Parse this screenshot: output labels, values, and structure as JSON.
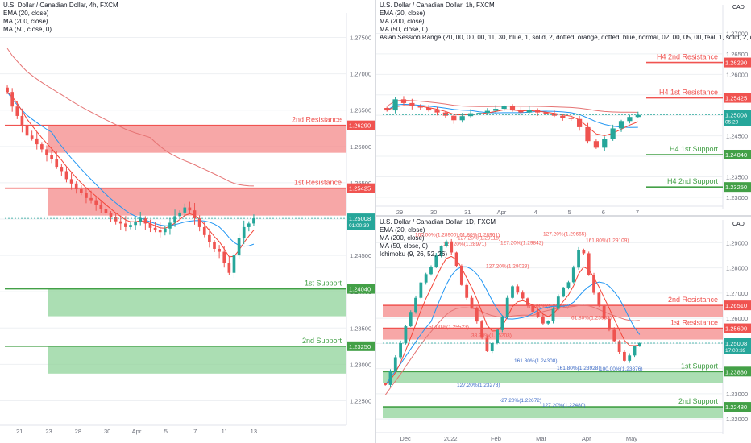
{
  "colors": {
    "up": "#26a69a",
    "down": "#ef5350",
    "resistance": "#f05350",
    "resistance_fill": "#f48a8a",
    "support": "#43a047",
    "support_fill": "#8fd39a",
    "ema": "#f44336",
    "ma200": "#e57373",
    "ma50": "#2196f3",
    "grid": "#eef0f3"
  },
  "chart_data": [
    {
      "type": "candlestick",
      "title": "U.S. Dollar / Canadian Dollar, 4h, FXCM",
      "indicators": [
        "EMA (20, close)",
        "MA (200, close)",
        "MA (50, close, 0)"
      ],
      "x_ticks": [
        "21",
        "23",
        "28",
        "30",
        "Apr",
        "5",
        "7",
        "11",
        "13"
      ],
      "y_ticks": [
        "1.27500",
        "1.27000",
        "1.26500",
        "1.26000",
        "1.25500",
        "1.25000",
        "1.24500",
        "1.24000",
        "1.23500",
        "1.23000",
        "1.22500"
      ],
      "ylim": [
        1.2225,
        1.2775
      ],
      "last_price": "1.25008",
      "countdown": "01:00:39",
      "levels": [
        {
          "name": "2nd Resistance",
          "value": 1.2629,
          "label": "1.26290",
          "type": "resistance"
        },
        {
          "name": "1st Resistance",
          "value": 1.25425,
          "label": "1.25425",
          "type": "resistance"
        },
        {
          "name": "1st Support",
          "value": 1.2404,
          "label": "1.24040",
          "type": "support"
        },
        {
          "name": "2nd Support",
          "value": 1.2325,
          "label": "1.23250",
          "type": "support"
        }
      ],
      "series_close": [
        1.2675,
        1.2655,
        1.2642,
        1.2628,
        1.2615,
        1.2611,
        1.2603,
        1.2596,
        1.2588,
        1.2583,
        1.2572,
        1.2566,
        1.2555,
        1.2549,
        1.2541,
        1.2536,
        1.2529,
        1.2526,
        1.252,
        1.2514,
        1.2508,
        1.2503,
        1.2497,
        1.2494,
        1.2489,
        1.2492,
        1.2496,
        1.2501,
        1.2494,
        1.2488,
        1.2485,
        1.2482,
        1.2487,
        1.2495,
        1.2504,
        1.2509,
        1.2516,
        1.2512,
        1.2501,
        1.2489,
        1.2478,
        1.2468,
        1.2459,
        1.2455,
        1.2439,
        1.2426,
        1.245,
        1.2474,
        1.2489,
        1.2494,
        1.2501
      ]
    },
    {
      "type": "candlestick",
      "title": "U.S. Dollar / Canadian Dollar, 1h, FXCM",
      "indicators": [
        "EMA (20, close)",
        "MA (200, close)",
        "MA (50, close, 0)",
        "Asian Session Range (20, 00, 00, 00, 11, 30, blue, 1, solid, 2, dotted, orange, dotted, blue, normal, 02, 00, 05, 00, teal, 1, solid, 2, dotted, teal, dotted,"
      ],
      "x_ticks": [
        "29",
        "30",
        "31",
        "Apr",
        "4",
        "5",
        "6",
        "7"
      ],
      "y_ticks": [
        "1.27000",
        "1.26500",
        "1.26000",
        "1.25500",
        "1.25000",
        "1.24500",
        "1.24000",
        "1.23500",
        "1.23000"
      ],
      "ylim": [
        1.2286,
        1.2754
      ],
      "price_scale_label": "CAD",
      "last_price": "1.25008",
      "countdown": "05:29",
      "levels": [
        {
          "name": "H4 2nd Resistance",
          "value": 1.2629,
          "label": "1.26290",
          "type": "resistance"
        },
        {
          "name": "H4 1st Resistance",
          "value": 1.25425,
          "label": "1.25425",
          "type": "resistance"
        },
        {
          "name": "H4 1st Support",
          "value": 1.2404,
          "label": "1.24040",
          "type": "support"
        },
        {
          "name": "H4 2nd Support",
          "value": 1.2325,
          "label": "1.23250",
          "type": "support"
        }
      ],
      "series_close": [
        1.2512,
        1.2539,
        1.253,
        1.2523,
        1.2519,
        1.2512,
        1.2507,
        1.2499,
        1.2488,
        1.2498,
        1.2505,
        1.2506,
        1.2511,
        1.2516,
        1.2522,
        1.2512,
        1.2507,
        1.2513,
        1.2507,
        1.2503,
        1.2499,
        1.2494,
        1.2491,
        1.2471,
        1.2437,
        1.2421,
        1.2442,
        1.2468,
        1.2486,
        1.2496,
        1.2501
      ]
    },
    {
      "type": "candlestick",
      "title": "U.S. Dollar / Canadian Dollar, 1D, FXCM",
      "indicators": [
        "EMA (20, close)",
        "MA (200, close)",
        "MA (50, close, 0)",
        "Ichimoku (9, 26, 52, 26)"
      ],
      "x_ticks": [
        "Dec",
        "2022",
        "Feb",
        "Mar",
        "Apr",
        "May"
      ],
      "y_ticks": [
        "1.29000",
        "1.28000",
        "1.27000",
        "1.26000",
        "1.25000",
        "1.24000",
        "1.23000",
        "1.22000"
      ],
      "ylim": [
        1.2165,
        1.2965
      ],
      "price_scale_label": "CAD",
      "last_price": "1.25008",
      "countdown": "17:00:39",
      "levels": [
        {
          "name": "2nd Resistance",
          "value": 1.2651,
          "label": "1.26510",
          "type": "resistance"
        },
        {
          "name": "1st Resistance",
          "value": 1.256,
          "label": "1.25600",
          "type": "resistance"
        },
        {
          "name": "1st Support",
          "value": 1.2388,
          "label": "1.23880",
          "type": "support"
        },
        {
          "name": "2nd Support",
          "value": 1.2248,
          "label": "1.22480",
          "type": "support"
        }
      ],
      "fib_labels": [
        {
          "text": "100.00%(1.28900) 61.80%(1.28961)",
          "value": 1.2925
        },
        {
          "text": "127.20%(1.29115)",
          "value": 1.2912
        },
        {
          "text": "127.20%(1.29842)",
          "value": 1.2893
        },
        {
          "text": "127.20%(1.29665)",
          "value": 1.2928
        },
        {
          "text": "161.80%(1.29109)",
          "value": 1.2902
        },
        {
          "text": "127.20%(1.28971)",
          "value": 1.2888
        },
        {
          "text": "127.20%(1.28023)",
          "value": 1.2801
        },
        {
          "text": "78.60%(1.26880)",
          "value": 1.2642
        },
        {
          "text": "61.80%(1.25968)",
          "value": 1.2595
        },
        {
          "text": "50.00%(1.25523)",
          "value": 1.2558
        },
        {
          "text": "38.20%(1.25203)",
          "value": 1.2525
        },
        {
          "text": "161.80%(1.24308)",
          "value": 1.2425
        },
        {
          "text": "161.80%(1.23928)",
          "value": 1.2396
        },
        {
          "text": "100.00%(1.23876)",
          "value": 1.2392
        },
        {
          "text": "127.20%(1.23278)",
          "value": 1.2328
        },
        {
          "text": "-27.20%(1.22672)",
          "value": 1.2267
        },
        {
          "text": "127.20%(1.22480)",
          "value": 1.2248
        }
      ],
      "series_close": [
        1.2335,
        1.2392,
        1.2445,
        1.2501,
        1.2568,
        1.2625,
        1.2681,
        1.2742,
        1.2775,
        1.2802,
        1.2849,
        1.2885,
        1.2905,
        1.2861,
        1.2808,
        1.2732,
        1.2681,
        1.2642,
        1.2587,
        1.2522,
        1.2469,
        1.2501,
        1.2553,
        1.2604,
        1.2681,
        1.2727,
        1.2702,
        1.2679,
        1.2651,
        1.2626,
        1.2604,
        1.2579,
        1.2588,
        1.2637,
        1.2686,
        1.2722,
        1.2743,
        1.2801,
        1.2872,
        1.2858,
        1.2771,
        1.2701,
        1.2649,
        1.2598,
        1.2554,
        1.2509,
        1.2466,
        1.2431,
        1.2452,
        1.2489,
        1.2501
      ]
    }
  ]
}
